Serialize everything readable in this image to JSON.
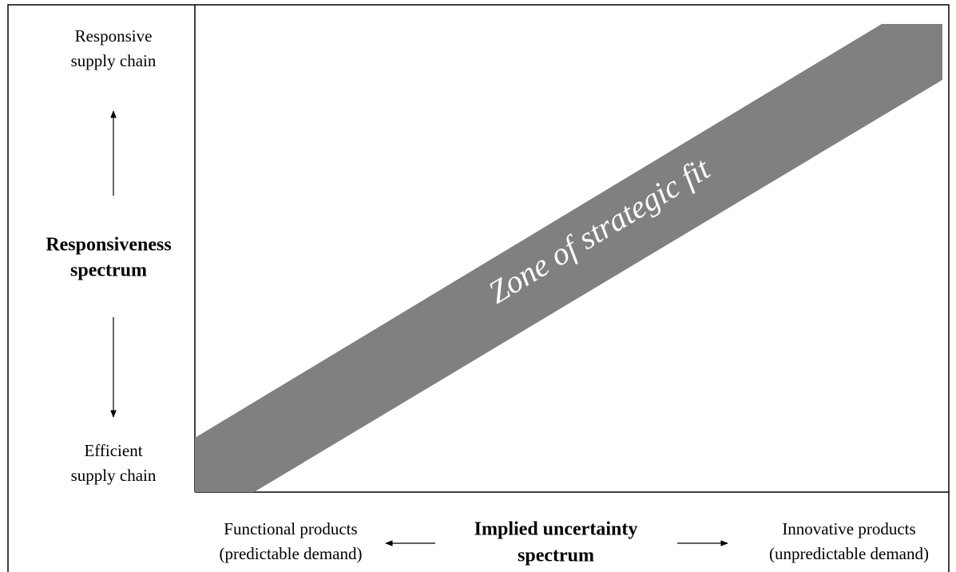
{
  "y_axis": {
    "top_label": [
      "Responsive",
      "supply chain"
    ],
    "title": [
      "Responsiveness",
      "spectrum"
    ],
    "bottom_label": [
      "Efficient",
      "supply chain"
    ]
  },
  "x_axis": {
    "left_label": [
      "Functional products",
      "(predictable demand)"
    ],
    "title": [
      "Implied uncertainty",
      "spectrum"
    ],
    "right_label": [
      "Innovative products",
      "(unpredictable demand)"
    ]
  },
  "zone_label": "Zone of strategic fit"
}
